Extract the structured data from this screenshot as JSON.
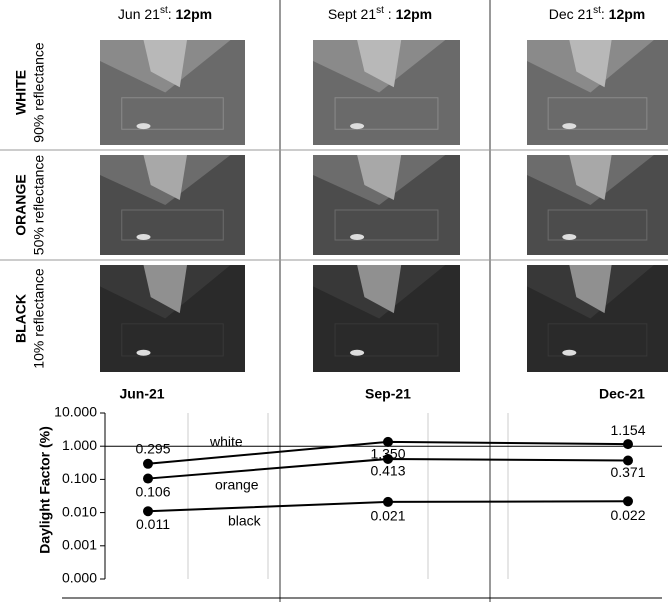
{
  "columns": [
    {
      "date": "Jun 21",
      "sup": "st",
      "sep": ": ",
      "time": "12pm"
    },
    {
      "date": "Sept 21",
      "sup": "st",
      "sep": " : ",
      "time": "12pm"
    },
    {
      "date": "Dec 21",
      "sup": "st",
      "sep": ": ",
      "time": "12pm"
    }
  ],
  "rows": [
    {
      "name": "WHITE",
      "note": "90% reflectance"
    },
    {
      "name": "ORANGE",
      "note": "50% reflectance"
    },
    {
      "name": "BLACK",
      "note": "10% reflectance"
    }
  ],
  "chart_data": {
    "type": "line",
    "ylabel": "Daylight Factor (%)",
    "categories": [
      "Jun-21",
      "Sep-21",
      "Dec-21"
    ],
    "log_scale": true,
    "ylim": [
      0.0001,
      10
    ],
    "yticks": [
      {
        "value": 10,
        "label": "10.000"
      },
      {
        "value": 1,
        "label": "1.000"
      },
      {
        "value": 0.1,
        "label": "0.100"
      },
      {
        "value": 0.01,
        "label": "0.010"
      },
      {
        "value": 0.001,
        "label": "0.001"
      },
      {
        "value": 0.0001,
        "label": "0.000"
      }
    ],
    "color": "#000000",
    "series": [
      {
        "name": "white",
        "values": [
          0.295,
          1.35,
          1.154
        ],
        "value_labels": [
          "0.295",
          "1.350",
          "1.154"
        ]
      },
      {
        "name": "orange",
        "values": [
          0.106,
          0.413,
          0.371
        ],
        "value_labels": [
          "0.106",
          "0.413",
          "0.371"
        ]
      },
      {
        "name": "black",
        "values": [
          0.011,
          0.021,
          0.022
        ],
        "value_labels": [
          "0.011",
          "0.021",
          "0.022"
        ]
      }
    ]
  }
}
